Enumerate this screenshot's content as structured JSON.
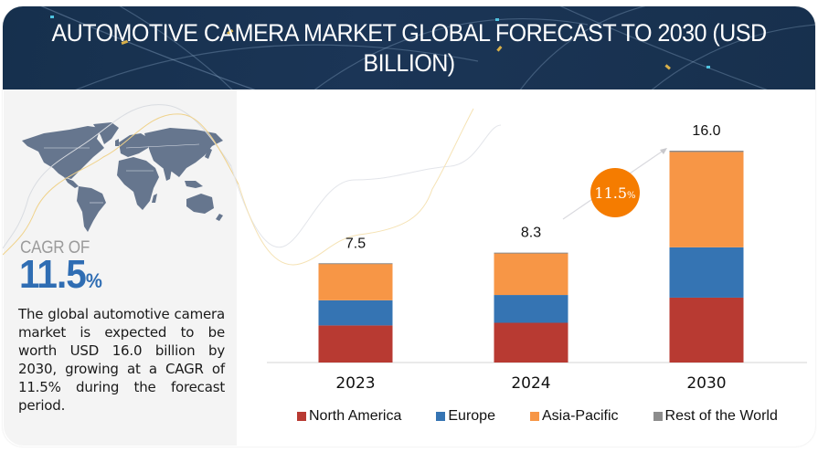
{
  "header": {
    "title": "AUTOMOTIVE CAMERA MARKET GLOBAL FORECAST TO 2030 (USD BILLION)"
  },
  "left_panel": {
    "map_icon": "world-map",
    "cagr_label": "CAGR OF",
    "cagr_value": "11.5",
    "cagr_unit": "%",
    "description": "The global automotive camera market is expected to be worth USD 16.0 billion by 2030, growing at a CAGR of 11.5% during the forecast period."
  },
  "chart_data": {
    "type": "bar",
    "stacked": true,
    "title": "AUTOMOTIVE CAMERA MARKET GLOBAL FORECAST TO 2030 (USD BILLION)",
    "xlabel": "",
    "ylabel": "",
    "categories": [
      "2023",
      "2024",
      "2030"
    ],
    "totals": [
      7.5,
      8.3,
      16.0
    ],
    "total_labels": [
      "7.5",
      "8.3",
      "16.0"
    ],
    "series": [
      {
        "name": "North America",
        "color": "#b83a32",
        "values": [
          2.8,
          3.0,
          4.9
        ]
      },
      {
        "name": "Europe",
        "color": "#3574b3",
        "values": [
          1.9,
          2.1,
          3.8
        ]
      },
      {
        "name": "Asia-Pacific",
        "color": "#f79646",
        "values": [
          2.75,
          3.15,
          7.2
        ]
      },
      {
        "name": "Rest of the World",
        "color": "#8c8c8c",
        "values": [
          0.05,
          0.05,
          0.1
        ]
      }
    ],
    "ylim": [
      0,
      16.5
    ],
    "grid": false,
    "legend_position": "bottom",
    "annotation": {
      "label": "11.5",
      "unit": "%",
      "color": "#f57c00",
      "kind": "cagr-badge"
    }
  }
}
